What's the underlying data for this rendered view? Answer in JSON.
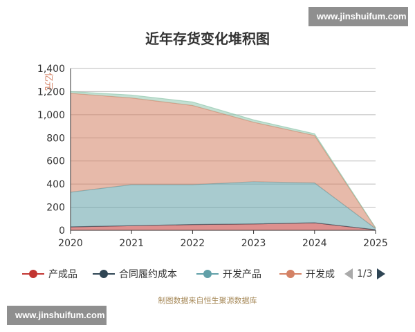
{
  "watermark_text": "www.jinshuifum.com",
  "chart_data": {
    "type": "area",
    "stacked": true,
    "title": "近年存货变化堆积图",
    "ylabel": "亿元",
    "xlabel": "",
    "x": [
      "2020",
      "2021",
      "2022",
      "2023",
      "2024",
      "2025"
    ],
    "ylim": [
      0,
      1400
    ],
    "yticks": [
      0,
      200,
      400,
      600,
      800,
      1000,
      1200,
      1400
    ],
    "ytick_labels": [
      "0",
      "200",
      "400",
      "600",
      "800",
      "1,000",
      "1,200",
      "1,400"
    ],
    "grid": true,
    "legend_position": "bottom",
    "series": [
      {
        "name": "产成品",
        "color": "#c23531",
        "values": [
          30,
          40,
          50,
          55,
          65,
          5
        ]
      },
      {
        "name": "合同履约成本",
        "color": "#2f4554",
        "values": [
          0,
          0,
          0,
          0,
          0,
          0
        ]
      },
      {
        "name": "开发产品",
        "color": "#61a0a8",
        "values": [
          300,
          355,
          345,
          365,
          345,
          10
        ]
      },
      {
        "name": "开发成本",
        "color": "#d48265",
        "values": [
          855,
          750,
          685,
          515,
          410,
          5
        ]
      },
      {
        "name": "",
        "color": "#91c7ae",
        "values": [
          15,
          25,
          30,
          20,
          15,
          2
        ]
      }
    ]
  },
  "legend": {
    "items": [
      {
        "label": "产成品",
        "color": "#c23531"
      },
      {
        "label": "合同履约成本",
        "color": "#2f4554"
      },
      {
        "label": "开发产品",
        "color": "#61a0a8"
      },
      {
        "label": "开发成",
        "color": "#d48265"
      }
    ],
    "page_text": "1/3",
    "prev_color": "#aaaaaa",
    "next_color": "#2f4554"
  },
  "source_note": "制图数据来自恒生聚源数据库"
}
